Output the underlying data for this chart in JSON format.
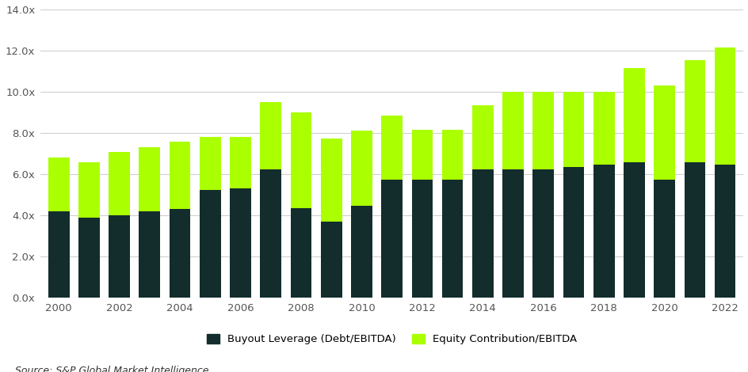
{
  "years": [
    2000,
    2001,
    2002,
    2003,
    2004,
    2005,
    2006,
    2007,
    2008,
    2009,
    2010,
    2011,
    2012,
    2013,
    2014,
    2015,
    2016,
    2017,
    2018,
    2019,
    2020,
    2021,
    2022
  ],
  "debt": [
    4.2,
    3.9,
    4.0,
    4.2,
    4.3,
    5.25,
    5.3,
    6.25,
    4.35,
    3.7,
    4.45,
    5.75,
    5.75,
    5.75,
    6.25,
    6.25,
    6.25,
    6.35,
    6.45,
    6.6,
    5.75,
    6.6,
    6.45
  ],
  "equity": [
    2.6,
    2.7,
    3.1,
    3.1,
    3.3,
    2.55,
    2.5,
    3.25,
    4.65,
    4.05,
    3.65,
    3.1,
    2.4,
    2.4,
    3.1,
    3.75,
    3.75,
    3.65,
    3.55,
    4.55,
    4.55,
    4.95,
    5.7
  ],
  "debt_color": "#132d2d",
  "equity_color": "#aaff00",
  "ylim": [
    0,
    14.0
  ],
  "yticks": [
    0.0,
    2.0,
    4.0,
    6.0,
    8.0,
    10.0,
    12.0,
    14.0
  ],
  "ytick_labels": [
    "0.0x",
    "2.0x",
    "4.0x",
    "6.0x",
    "8.0x",
    "10.0x",
    "12.0x",
    "14.0x"
  ],
  "legend_label_debt": "Buyout Leverage (Debt/EBITDA)",
  "legend_label_equity": "Equity Contribution/EBITDA",
  "source_text": "Source: S&P Global Market Intelligence.",
  "bg_color": "#ffffff",
  "grid_color": "#d0d0d0",
  "bar_width": 0.7,
  "label_color": "#555555",
  "xtick_even_years": [
    2000,
    2002,
    2004,
    2006,
    2008,
    2010,
    2012,
    2014,
    2016,
    2018,
    2020,
    2022
  ]
}
